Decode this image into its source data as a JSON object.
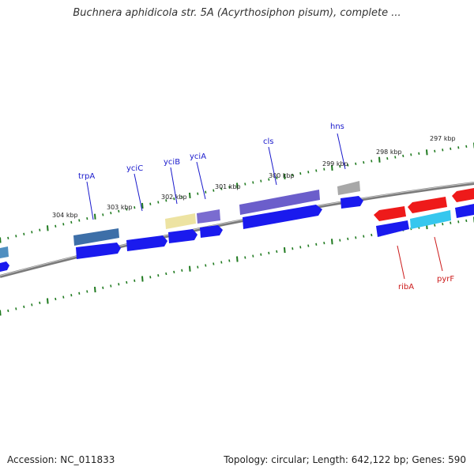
{
  "title": "Buchnera aphidicola str. 5A (Acyrthosiphon pisum), complete ...",
  "footer": {
    "accession": "Accession: NC_011833",
    "summary": "Topology: circular; Length: 642,122 bp; Genes: 590"
  },
  "colors": {
    "backbone": "#7a7a7a",
    "ticks": "#1f7a1f",
    "forward_cds": "#1a1aee",
    "reverse_cds": "#ee1a1a",
    "label_forward": "#1a1acc",
    "label_reverse": "#cc1a1a"
  },
  "ticks": [
    {
      "label": "304 kbp"
    },
    {
      "label": "303 kbp"
    },
    {
      "label": "302 kbp"
    },
    {
      "label": "301 kbp"
    },
    {
      "label": "300 kbp"
    },
    {
      "label": "299 kbp"
    },
    {
      "label": "298 kbp"
    },
    {
      "label": "297 kbp"
    }
  ],
  "genes": [
    {
      "name": "trpA",
      "strand": "forward"
    },
    {
      "name": "yciC",
      "strand": "forward"
    },
    {
      "name": "yciB",
      "strand": "forward"
    },
    {
      "name": "yciA",
      "strand": "forward"
    },
    {
      "name": "cls",
      "strand": "forward"
    },
    {
      "name": "hns",
      "strand": "forward"
    },
    {
      "name": "ribA",
      "strand": "reverse"
    },
    {
      "name": "pyrF",
      "strand": "reverse"
    }
  ]
}
